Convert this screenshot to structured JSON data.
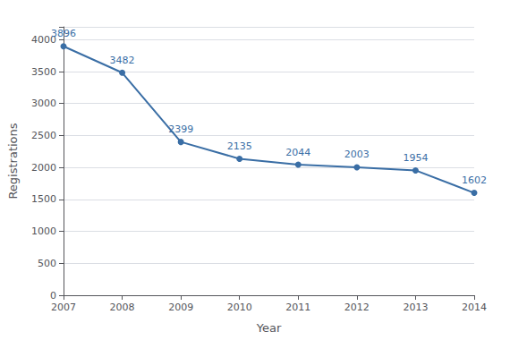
{
  "chart_data": {
    "type": "line",
    "x": [
      2007,
      2008,
      2009,
      2010,
      2011,
      2012,
      2013,
      2014
    ],
    "values": [
      3896,
      3482,
      2399,
      2135,
      2044,
      2003,
      1954,
      1602
    ],
    "color": "#3a6ea5",
    "marker": "circle",
    "xlabel": "Year",
    "ylabel": "Registrations",
    "xlim": [
      2007,
      2014
    ],
    "xticks": [
      2007,
      2008,
      2009,
      2010,
      2011,
      2012,
      2013,
      2014
    ],
    "ylim": [
      0,
      4200
    ],
    "yticks": [
      0,
      500,
      1000,
      1500,
      2000,
      2500,
      3000,
      3500,
      4000
    ],
    "grid": true,
    "data_labels": true
  }
}
